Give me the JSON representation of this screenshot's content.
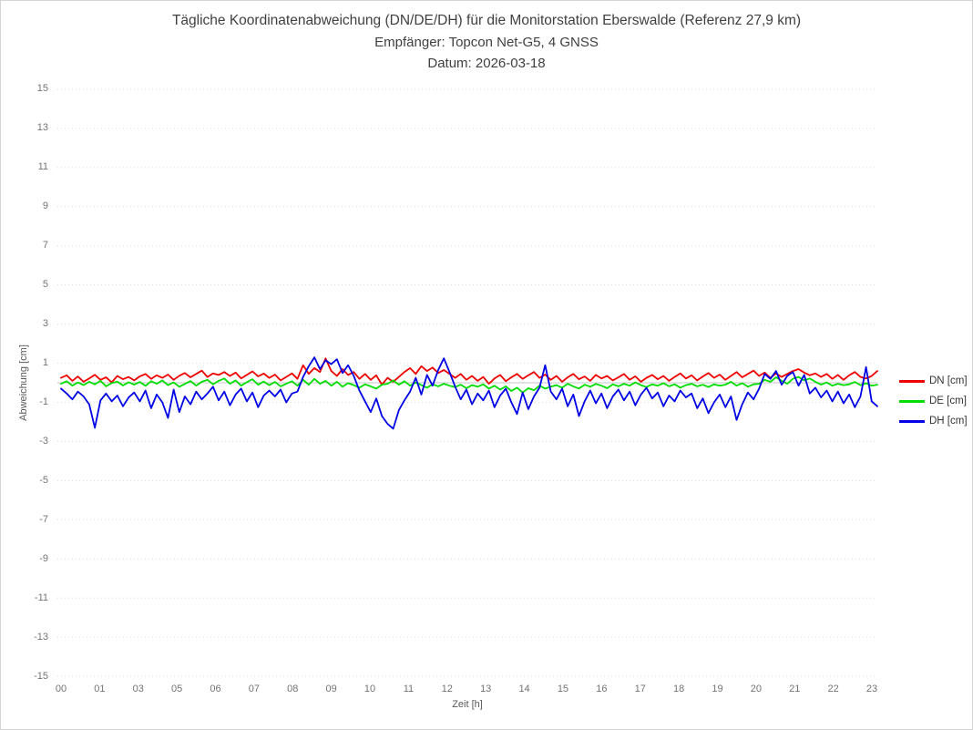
{
  "chart_data": {
    "type": "line",
    "title": "Tägliche Koordinatenabweichung (DN/DE/DH) für die Monitorstation Eberswalde (Referenz 27,9 km)",
    "subtitle": "Empfänger: Topcon Net-G5, 4 GNSS",
    "date_label": "Datum: 2026-03-18",
    "xlabel": "Zeit [h]",
    "ylabel": "Abweichung [cm]",
    "ylim": [
      -15,
      15
    ],
    "ytick_values": [
      15,
      13,
      11,
      9,
      7,
      5,
      3,
      1,
      -1,
      -3,
      -5,
      -7,
      -9,
      -11,
      -13,
      -15
    ],
    "xtick_labels": [
      "00",
      "01",
      "03",
      "05",
      "06",
      "07",
      "08",
      "09",
      "10",
      "11",
      "12",
      "13",
      "14",
      "15",
      "16",
      "17",
      "18",
      "19",
      "20",
      "21",
      "22",
      "23"
    ],
    "grid": "horizontal dotted lines at odd values, solid light line at 0, no vertical gridlines",
    "legend_position": "right-middle",
    "series": [
      {
        "name": "DN [cm]",
        "color": "#ee0000",
        "values": [
          0.25,
          0.38,
          0.1,
          0.32,
          0.05,
          0.22,
          0.41,
          0.15,
          0.28,
          0.02,
          0.35,
          0.18,
          0.3,
          0.12,
          0.33,
          0.45,
          0.2,
          0.38,
          0.25,
          0.42,
          0.15,
          0.36,
          0.5,
          0.28,
          0.45,
          0.62,
          0.3,
          0.48,
          0.4,
          0.55,
          0.35,
          0.52,
          0.22,
          0.4,
          0.58,
          0.33,
          0.47,
          0.25,
          0.42,
          0.12,
          0.3,
          0.48,
          0.2,
          0.9,
          0.45,
          0.75,
          0.55,
          1.25,
          0.6,
          0.35,
          0.7,
          0.4,
          0.55,
          0.2,
          0.45,
          0.15,
          0.38,
          -0.1,
          0.25,
          0.05,
          0.3,
          0.55,
          0.75,
          0.45,
          0.85,
          0.6,
          0.78,
          0.5,
          0.65,
          0.45,
          0.25,
          0.45,
          0.15,
          0.35,
          0.1,
          0.3,
          -0.05,
          0.22,
          0.4,
          0.08,
          0.28,
          0.45,
          0.2,
          0.38,
          0.55,
          0.25,
          0.42,
          0.15,
          0.35,
          0.05,
          0.28,
          0.45,
          0.18,
          0.32,
          0.1,
          0.4,
          0.22,
          0.35,
          0.12,
          0.28,
          0.45,
          0.15,
          0.33,
          0.05,
          0.25,
          0.4,
          0.18,
          0.35,
          0.1,
          0.3,
          0.48,
          0.22,
          0.38,
          0.12,
          0.32,
          0.5,
          0.25,
          0.42,
          0.15,
          0.35,
          0.55,
          0.28,
          0.45,
          0.62,
          0.35,
          0.52,
          0.25,
          0.48,
          0.3,
          0.45,
          0.6,
          0.7,
          0.52,
          0.38,
          0.48,
          0.3,
          0.45,
          0.2,
          0.4,
          0.15,
          0.38,
          0.55,
          0.3,
          0.22,
          0.35,
          0.6
        ]
      },
      {
        "name": "DE [cm]",
        "color": "#00dd00",
        "values": [
          -0.05,
          0.08,
          -0.15,
          0.02,
          -0.12,
          0.05,
          -0.08,
          0.1,
          -0.18,
          -0.02,
          0.06,
          -0.14,
          0.03,
          -0.1,
          0.04,
          -0.16,
          0.08,
          -0.05,
          0.12,
          -0.12,
          0.02,
          -0.2,
          -0.06,
          0.09,
          -0.15,
          0.05,
          0.15,
          -0.08,
          0.1,
          0.22,
          -0.05,
          0.12,
          -0.15,
          0.03,
          0.18,
          -0.1,
          0.06,
          -0.12,
          0.04,
          -0.18,
          -0.05,
          0.08,
          -0.15,
          0.15,
          -0.1,
          0.2,
          -0.05,
          0.1,
          -0.15,
          0.05,
          -0.2,
          -0.02,
          -0.12,
          -0.25,
          -0.08,
          -0.18,
          -0.3,
          -0.1,
          -0.05,
          0.12,
          -0.1,
          0.08,
          -0.15,
          0.02,
          -0.12,
          -0.25,
          -0.08,
          -0.18,
          -0.05,
          -0.15,
          -0.22,
          -0.1,
          -0.28,
          -0.12,
          -0.2,
          -0.08,
          -0.3,
          -0.15,
          -0.35,
          -0.18,
          -0.42,
          -0.25,
          -0.5,
          -0.28,
          -0.38,
          -0.15,
          -0.3,
          -0.2,
          -0.12,
          -0.25,
          -0.05,
          -0.18,
          -0.3,
          -0.1,
          -0.2,
          -0.06,
          -0.15,
          -0.28,
          -0.08,
          -0.18,
          -0.05,
          -0.15,
          0.02,
          -0.12,
          -0.22,
          -0.08,
          -0.15,
          -0.02,
          -0.18,
          -0.08,
          -0.25,
          -0.12,
          -0.05,
          -0.18,
          -0.1,
          -0.22,
          -0.08,
          -0.15,
          -0.1,
          0.05,
          -0.15,
          -0.02,
          -0.2,
          -0.08,
          -0.05,
          0.15,
          0.05,
          0.28,
          0.1,
          -0.05,
          0.2,
          0.3,
          0.12,
          0.22,
          0.05,
          -0.1,
          0.02,
          -0.15,
          -0.05,
          -0.12,
          -0.08,
          0.04,
          -0.12,
          -0.03,
          -0.15,
          -0.1
        ]
      },
      {
        "name": "DH [cm]",
        "color": "#0000e6",
        "values": [
          -0.3,
          -0.55,
          -0.85,
          -0.45,
          -0.7,
          -1.1,
          -2.3,
          -0.9,
          -0.55,
          -0.95,
          -0.65,
          -1.2,
          -0.75,
          -0.5,
          -0.95,
          -0.4,
          -1.3,
          -0.6,
          -1.0,
          -1.8,
          -0.35,
          -1.5,
          -0.7,
          -1.1,
          -0.45,
          -0.85,
          -0.55,
          -0.2,
          -0.9,
          -0.45,
          -1.15,
          -0.6,
          -0.3,
          -0.95,
          -0.5,
          -1.25,
          -0.65,
          -0.4,
          -0.7,
          -0.35,
          -1.0,
          -0.55,
          -0.45,
          0.3,
          0.85,
          1.3,
          0.7,
          1.15,
          0.95,
          1.2,
          0.5,
          0.9,
          0.35,
          -0.4,
          -0.95,
          -1.5,
          -0.8,
          -1.7,
          -2.1,
          -2.35,
          -1.4,
          -0.9,
          -0.45,
          0.25,
          -0.6,
          0.4,
          -0.15,
          0.65,
          1.25,
          0.55,
          -0.2,
          -0.85,
          -0.35,
          -1.1,
          -0.55,
          -0.9,
          -0.4,
          -1.25,
          -0.65,
          -0.3,
          -1.0,
          -1.6,
          -0.5,
          -1.35,
          -0.7,
          -0.25,
          0.9,
          -0.45,
          -0.85,
          -0.3,
          -1.2,
          -0.6,
          -1.7,
          -0.95,
          -0.4,
          -1.05,
          -0.55,
          -1.3,
          -0.7,
          -0.35,
          -0.9,
          -0.45,
          -1.15,
          -0.6,
          -0.25,
          -0.8,
          -0.5,
          -1.2,
          -0.65,
          -0.95,
          -0.4,
          -0.75,
          -0.55,
          -1.3,
          -0.8,
          -1.55,
          -1.0,
          -0.6,
          -1.25,
          -0.7,
          -1.9,
          -1.1,
          -0.5,
          -0.85,
          -0.3,
          0.45,
          0.2,
          0.6,
          -0.1,
          0.35,
          0.55,
          -0.15,
          0.4,
          -0.55,
          -0.25,
          -0.75,
          -0.4,
          -0.95,
          -0.45,
          -1.05,
          -0.6,
          -1.25,
          -0.7,
          0.8,
          -0.95,
          -1.2
        ]
      }
    ]
  },
  "colors": {
    "grid": "#dcdcdc",
    "zero_line": "#c4c4c4",
    "tick_text": "#737373",
    "title_text": "#404040",
    "axis_title_text": "#595959",
    "border": "#d4d4d4"
  }
}
